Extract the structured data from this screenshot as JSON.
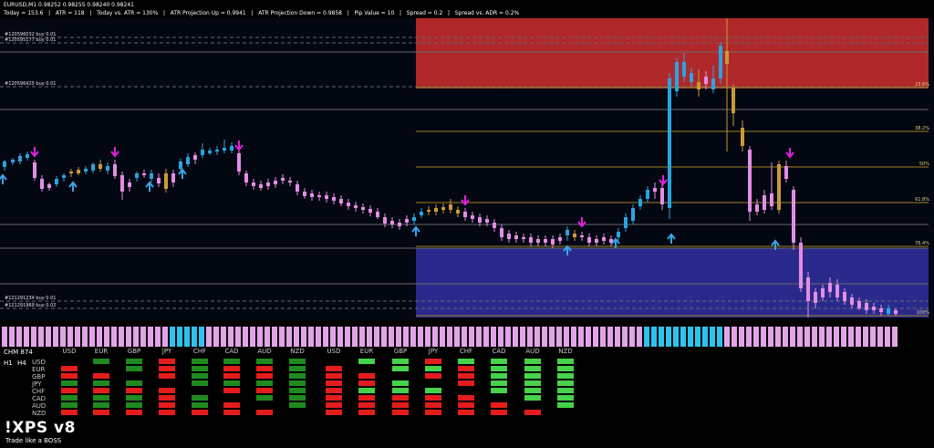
{
  "header": {
    "symbol": "EURUSD,M1  0.98252 0.98255 0.98240 0.98241",
    "stats": [
      "Today = 153.6",
      "ATR = 118",
      "Today vs. ATR = 130%",
      "ATR Projection Up = 0.9941",
      "ATR Projection Down = 0.9858",
      "Pip Value = 10",
      "Spread = 0.2",
      "Spread vs. ADR = 0.2%"
    ]
  },
  "colors": {
    "background": "#000000",
    "chart_bg": "#030712",
    "bull_candle": "#2aa4e0",
    "bear_candle": "#e28ee4",
    "neutral_candle": "#c99a38",
    "supply_zone": "#b0282a",
    "demand_zone": "#2a2a8c",
    "fib_line": "#a08020",
    "level_line": "#6a6a6a",
    "sell_arrow": "#e021e0",
    "buy_arrow": "#3aa4e8",
    "strength_pink": "#e3a3e8",
    "strength_cyan": "#2ec3ee",
    "chm_red": "#e51c1c",
    "chm_darkgreen": "#1f8a1f",
    "chm_lightgreen": "#46d24a"
  },
  "chart": {
    "orders": [
      "#120596032 buy 0.01",
      "#120595177 buy 0.01",
      "#120596425 buy 0.01",
      "#121291234 buy 0.01",
      "#121291969 buy 0.02"
    ],
    "fib_labels": [
      "23.6%",
      "38.2%",
      "50%",
      "61.8%",
      "76.4%",
      "100%"
    ],
    "fib_levels": [
      23.6,
      38.2,
      50,
      61.8,
      76.4,
      100
    ]
  },
  "chm": {
    "title": "CHM 874",
    "timeframes": [
      "H1",
      "H4"
    ],
    "currencies": [
      "USD",
      "EUR",
      "GBP",
      "JPY",
      "CHF",
      "CAD",
      "AUD",
      "NZD"
    ],
    "rows": [
      "USD",
      "EUR",
      "GBP",
      "JPY",
      "CHF",
      "CAD",
      "AUD",
      "NZD"
    ]
  },
  "logo": {
    "name": "!XPS v8",
    "slogan": "Trade like a BOSS"
  }
}
